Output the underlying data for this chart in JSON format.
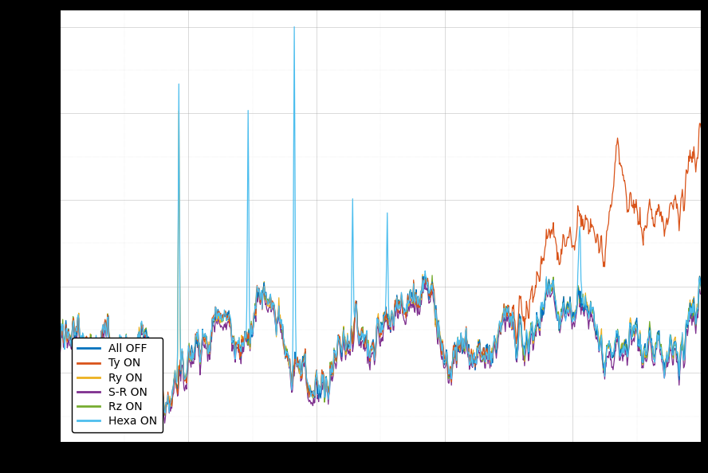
{
  "title": "",
  "xlabel": "",
  "ylabel": "",
  "line_colors": {
    "All OFF": "#0072BD",
    "Ty ON": "#D95319",
    "Ry ON": "#EDB120",
    "S-R ON": "#7E2F8E",
    "Rz ON": "#77AC30",
    "Hexa ON": "#4DBEEE"
  },
  "legend_labels": [
    "All OFF",
    "Ty ON",
    "Ry ON",
    "S-R ON",
    "Rz ON",
    "Hexa ON"
  ],
  "background_color": "#ffffff",
  "grid_color": "#aaaaaa",
  "n_points": 1000,
  "seed": 42,
  "figsize": [
    8.88,
    5.94
  ],
  "dpi": 100,
  "outer_bg": "#000000"
}
